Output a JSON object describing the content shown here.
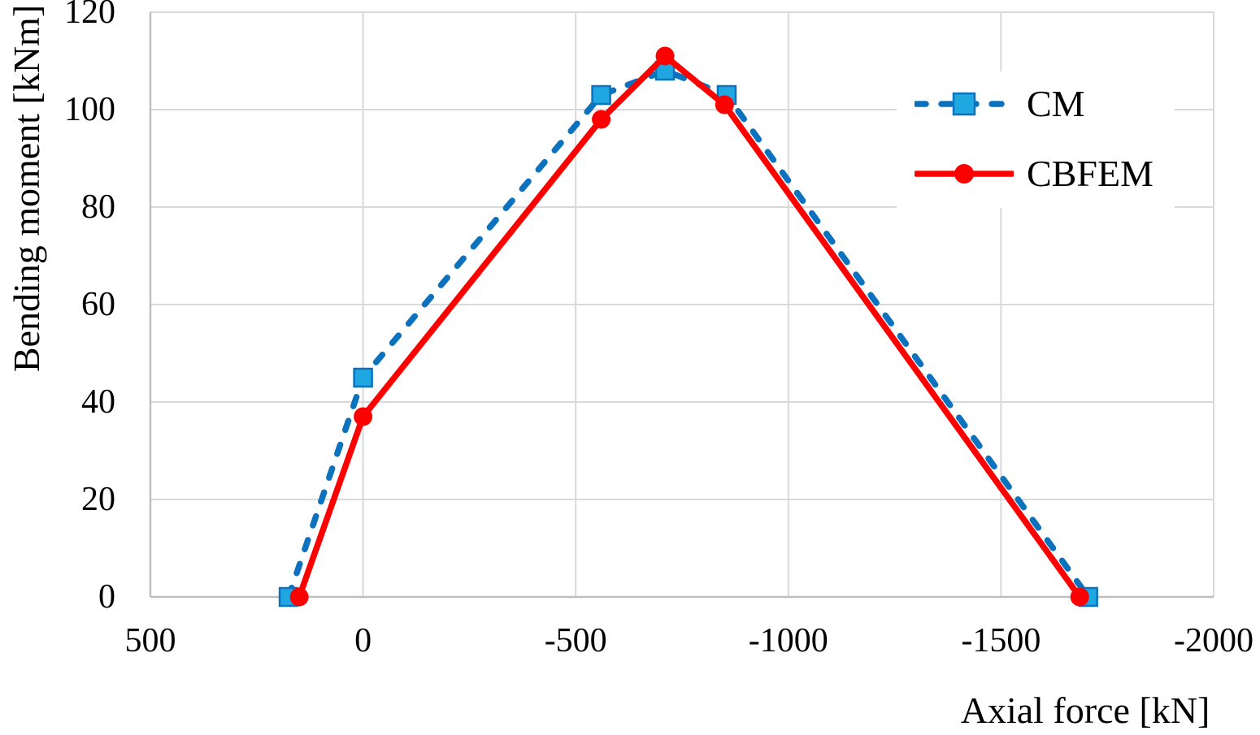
{
  "chart_data": {
    "type": "line",
    "title": "",
    "xlabel": "Axial force [kN]",
    "ylabel": "Bending moment [kNm]",
    "xlim": [
      500,
      -2000
    ],
    "ylim": [
      0,
      120
    ],
    "x_axis_reversed": true,
    "grid": true,
    "legend_position": "upper right inside",
    "x_tick_values": [
      500,
      0,
      -500,
      -1000,
      -1500,
      -2000
    ],
    "x_tick_labels": [
      "500",
      "0",
      "-500",
      "-1000",
      "-1500",
      "-2000"
    ],
    "y_tick_values": [
      0,
      20,
      40,
      60,
      80,
      100,
      120
    ],
    "y_tick_labels": [
      "0",
      "20",
      "40",
      "60",
      "80",
      "100",
      "120"
    ],
    "series": [
      {
        "name": "CM",
        "line_style": "dashed",
        "line_color": "#0C72BE",
        "marker": "square",
        "marker_fill": "#1EA7E1",
        "marker_border": "#0C72BE",
        "points": [
          [
            175,
            0
          ],
          [
            0,
            45
          ],
          [
            -560,
            103
          ],
          [
            -710,
            108
          ],
          [
            -855,
            103
          ],
          [
            -1705,
            0
          ]
        ]
      },
      {
        "name": "CBFEM",
        "line_style": "solid",
        "line_color": "#FF0000",
        "marker": "circle",
        "marker_fill": "#FF0000",
        "marker_border": "#FF0000",
        "points": [
          [
            150,
            0
          ],
          [
            0,
            37
          ],
          [
            -560,
            98
          ],
          [
            -710,
            111
          ],
          [
            -850,
            101
          ],
          [
            -1685,
            0
          ]
        ]
      }
    ]
  },
  "colors": {
    "background": "#FFFFFF",
    "gridline": "#D9D9D9",
    "axis_line": "#BFBFBF",
    "text": "#000000"
  }
}
